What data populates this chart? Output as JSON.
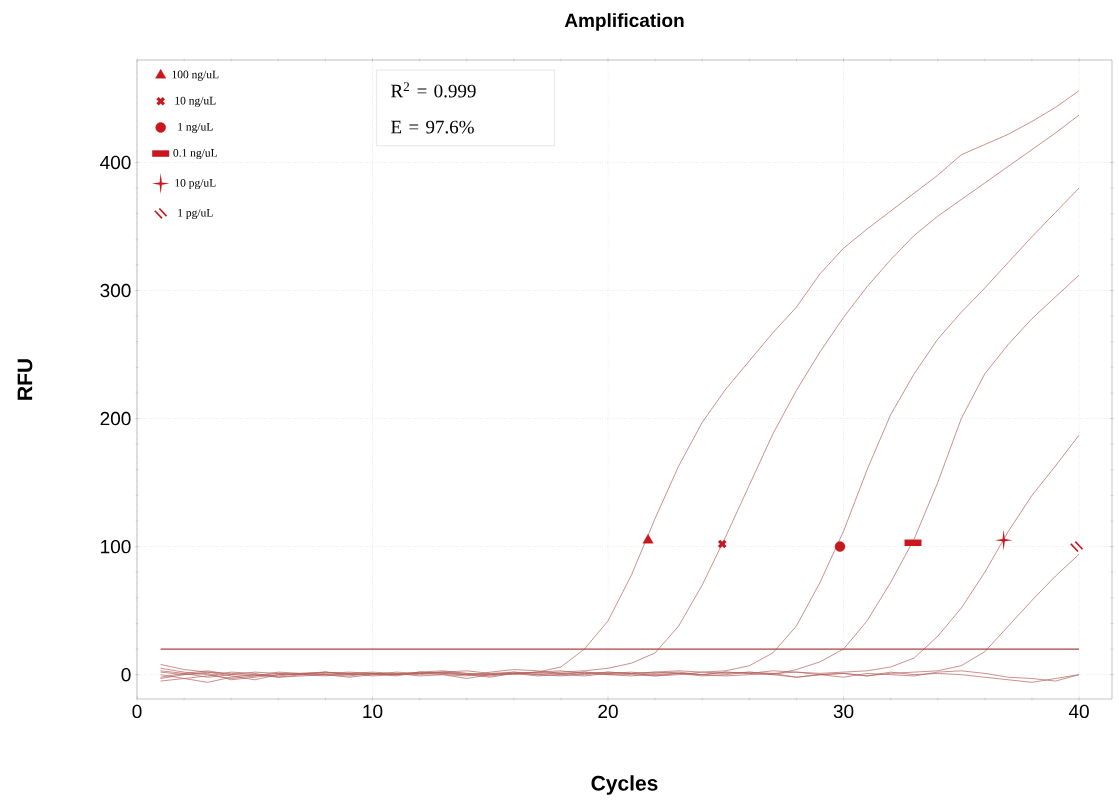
{
  "chart_data": {
    "type": "line",
    "title": "Amplification",
    "xlabel": "Cycles",
    "ylabel": "RFU",
    "xlim": [
      0,
      41.4
    ],
    "ylim": [
      -19,
      480
    ],
    "xticks": [
      0,
      10,
      20,
      30,
      40
    ],
    "yticks": [
      0,
      100,
      200,
      300,
      400
    ],
    "grid": true,
    "legend": "top left",
    "line_style": "solid",
    "annotations": [
      "R$^{2}$ = 0.999",
      "E = 97.6%"
    ],
    "ref_lines": [
      {
        "axis": "y",
        "value": 20,
        "color": "#a6443f"
      }
    ],
    "series": [
      {
        "color": "#b5625c",
        "x": [
          1,
          2,
          3,
          4,
          5,
          6,
          7,
          8,
          9,
          10,
          11,
          12,
          13,
          14,
          15,
          16,
          17,
          18,
          19,
          20,
          21,
          22,
          23,
          24,
          25,
          26,
          27,
          28,
          29,
          30,
          31,
          32,
          33,
          34,
          35,
          36,
          37,
          38,
          39,
          40
        ],
        "values": [
          3,
          1,
          -2,
          0,
          2,
          1,
          0,
          -1,
          1,
          2,
          1,
          0,
          2,
          1,
          0,
          1,
          2,
          6,
          20,
          42,
          78,
          122,
          163,
          197,
          223,
          245,
          267,
          287,
          313,
          333,
          348,
          362,
          376,
          390,
          406,
          414,
          422,
          432,
          443,
          456
        ]
      },
      {
        "color": "#b5625c",
        "x": [
          1,
          2,
          3,
          4,
          5,
          6,
          7,
          8,
          9,
          10,
          11,
          12,
          13,
          14,
          15,
          16,
          17,
          18,
          19,
          20,
          21,
          22,
          23,
          24,
          25,
          26,
          27,
          28,
          29,
          30,
          31,
          32,
          33,
          34,
          35,
          36,
          37,
          38,
          39,
          40
        ],
        "values": [
          -3,
          0,
          2,
          -1,
          -4,
          0,
          1,
          2,
          0,
          1,
          -1,
          2,
          3,
          1,
          0,
          2,
          1,
          2,
          3,
          5,
          9,
          17,
          38,
          70,
          108,
          148,
          188,
          222,
          252,
          279,
          303,
          324,
          343,
          358,
          371,
          384,
          397,
          410,
          423,
          437
        ]
      },
      {
        "color": "#b5625c",
        "x": [
          1,
          2,
          3,
          4,
          5,
          6,
          7,
          8,
          9,
          10,
          11,
          12,
          13,
          14,
          15,
          16,
          17,
          18,
          19,
          20,
          21,
          22,
          23,
          24,
          25,
          26,
          27,
          28,
          29,
          30,
          31,
          32,
          33,
          34,
          35,
          36,
          37,
          38,
          39,
          40
        ],
        "values": [
          8,
          4,
          2,
          1,
          0,
          -2,
          0,
          1,
          2,
          1,
          0,
          1,
          2,
          3,
          1,
          0,
          2,
          3,
          1,
          2,
          1,
          2,
          3,
          2,
          3,
          7,
          17,
          38,
          72,
          112,
          160,
          203,
          235,
          262,
          283,
          302,
          322,
          342,
          361,
          380
        ]
      },
      {
        "color": "#b5625c",
        "x": [
          1,
          2,
          3,
          4,
          5,
          6,
          7,
          8,
          9,
          10,
          11,
          12,
          13,
          14,
          15,
          16,
          17,
          18,
          19,
          20,
          21,
          22,
          23,
          24,
          25,
          26,
          27,
          28,
          29,
          30,
          31,
          32,
          33,
          34,
          35,
          36,
          37,
          38,
          39,
          40
        ],
        "values": [
          0,
          -3,
          -1,
          2,
          1,
          -2,
          -1,
          0,
          1,
          0,
          2,
          1,
          0,
          -1,
          2,
          4,
          3,
          1,
          0,
          2,
          1,
          -1,
          0,
          2,
          1,
          2,
          0,
          4,
          10,
          20,
          42,
          72,
          106,
          150,
          200,
          235,
          258,
          278,
          295,
          312
        ]
      },
      {
        "color": "#b5625c",
        "x": [
          1,
          2,
          3,
          4,
          5,
          6,
          7,
          8,
          9,
          10,
          11,
          12,
          13,
          14,
          15,
          16,
          17,
          18,
          19,
          20,
          21,
          22,
          23,
          24,
          25,
          26,
          27,
          28,
          29,
          30,
          31,
          32,
          33,
          34,
          35,
          36,
          37,
          38,
          39,
          40
        ],
        "values": [
          -2,
          1,
          3,
          0,
          -1,
          2,
          1,
          0,
          -1,
          1,
          0,
          2,
          1,
          0,
          -2,
          1,
          0,
          1,
          2,
          0,
          1,
          2,
          1,
          0,
          2,
          1,
          3,
          2,
          1,
          2,
          3,
          6,
          13,
          30,
          52,
          80,
          112,
          140,
          163,
          187
        ]
      },
      {
        "color": "#b5625c",
        "x": [
          1,
          2,
          3,
          4,
          5,
          6,
          7,
          8,
          9,
          10,
          11,
          12,
          13,
          14,
          15,
          16,
          17,
          18,
          19,
          20,
          21,
          22,
          23,
          24,
          25,
          26,
          27,
          28,
          29,
          30,
          31,
          32,
          33,
          34,
          35,
          36,
          37,
          38,
          39,
          40
        ],
        "values": [
          5,
          2,
          0,
          -3,
          -1,
          1,
          0,
          2,
          1,
          -1,
          0,
          1,
          2,
          0,
          -1,
          1,
          2,
          0,
          -1,
          1,
          2,
          0,
          1,
          -1,
          0,
          2,
          1,
          -2,
          0,
          1,
          -1,
          1,
          2,
          3,
          7,
          18,
          38,
          58,
          77,
          94
        ]
      },
      {
        "color": "#b5625c",
        "x": [
          1,
          2,
          3,
          4,
          5,
          6,
          7,
          8,
          9,
          10,
          11,
          12,
          13,
          14,
          15,
          16,
          17,
          18,
          19,
          20,
          21,
          22,
          23,
          24,
          25,
          26,
          27,
          28,
          29,
          30,
          31,
          32,
          33,
          34,
          35,
          36,
          37,
          38,
          39,
          40
        ],
        "values": [
          -5,
          -3,
          -6,
          -2,
          0,
          -1,
          1,
          0,
          -2,
          0,
          1,
          -1,
          0,
          -3,
          0,
          1,
          -1,
          0,
          2,
          1,
          0,
          -1,
          1,
          0,
          2,
          1,
          0,
          -2,
          0,
          1,
          -1,
          2,
          0,
          1,
          0,
          -2,
          -4,
          -6,
          -3,
          0
        ]
      },
      {
        "color": "#b5625c",
        "x": [
          1,
          2,
          3,
          4,
          5,
          6,
          7,
          8,
          9,
          10,
          11,
          12,
          13,
          14,
          15,
          16,
          17,
          18,
          19,
          20,
          21,
          22,
          23,
          24,
          25,
          26,
          27,
          28,
          29,
          30,
          31,
          32,
          33,
          34,
          35,
          36,
          37,
          38,
          39,
          40
        ],
        "values": [
          2,
          0,
          1,
          -4,
          -2,
          0,
          1,
          2,
          0,
          1,
          0,
          2,
          1,
          0,
          1,
          2,
          0,
          -1,
          1,
          0,
          -1,
          1,
          2,
          0,
          -1,
          0,
          1,
          2,
          0,
          -2,
          1,
          0,
          -1,
          2,
          3,
          1,
          -2,
          -3,
          -5,
          0
        ]
      },
      {
        "type": "scatter",
        "name": "100 ng/uL",
        "color": "#c8171e",
        "marker": "triangle",
        "x": [
          21.7
        ],
        "values": [
          105
        ]
      },
      {
        "type": "scatter",
        "name": "10 ng/uL",
        "color": "#c8171e",
        "marker": "cross",
        "x": [
          24.85
        ],
        "values": [
          102
        ]
      },
      {
        "type": "scatter",
        "name": "1 ng/uL",
        "color": "#c8171e",
        "marker": "circle",
        "x": [
          29.85
        ],
        "values": [
          100
        ]
      },
      {
        "type": "scatter",
        "name": "0.1 ng/uL",
        "color": "#c8171e",
        "marker": "square",
        "x": [
          32.95
        ],
        "values": [
          103
        ]
      },
      {
        "type": "scatter",
        "name": "10 pg/uL",
        "color": "#c8171e",
        "marker": "star",
        "x": [
          36.8
        ],
        "values": [
          105
        ]
      },
      {
        "type": "scatter",
        "name": "1 pg/uL",
        "color": "#c8171e",
        "x": [
          39.9
        ],
        "values": [
          100
        ]
      }
    ]
  }
}
